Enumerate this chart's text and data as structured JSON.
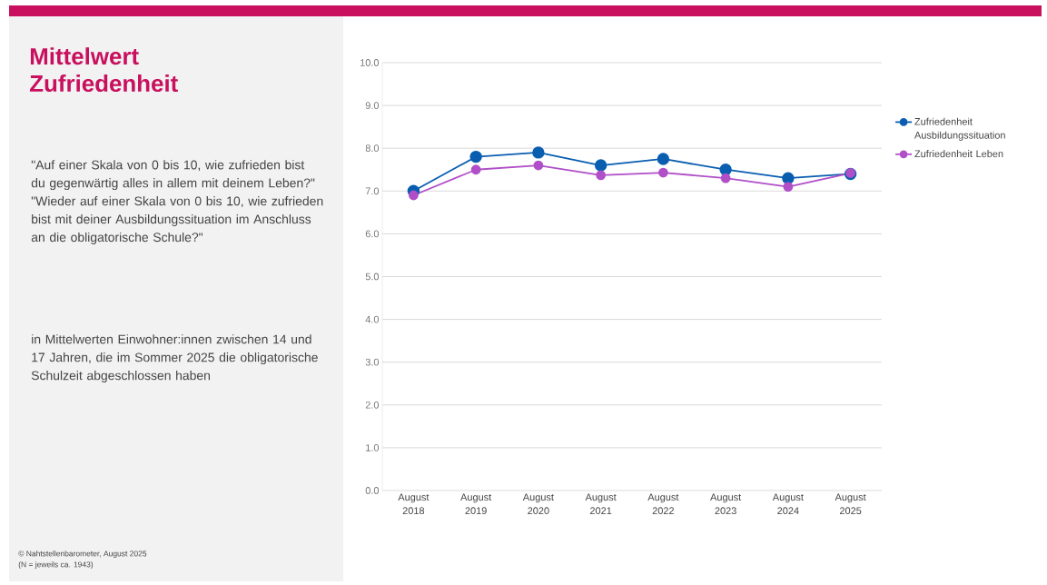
{
  "chart_data": {
    "type": "line",
    "title": "Mittelwert Zufriedenheit",
    "subtitle": "\"Auf einer Skala von 0 bis 10, wie zufrieden bist du gegenwärtig alles in allem mit deinem Leben?\" \"Wieder auf einer Skala von 0 bis 10, wie zufrieden bist mit deiner Ausbildungssituation im Anschluss an die obligatorische Schule?\"",
    "annotations": [
      "in Mittelwerten Einwohner:innen zwischen 14 und 17 Jahren, die im Sommer 2025 die obligatorische Schulzeit abgeschlossen haben",
      "© Nahtstellenbarometer, August 2025",
      "(N = jeweils ca. 1943)"
    ],
    "categories": [
      "August 2018",
      "August 2019",
      "August 2020",
      "August 2021",
      "August 2022",
      "August 2023",
      "August 2024",
      "August 2025"
    ],
    "series": [
      {
        "name": "Zufriedenheit Ausbildungssituation",
        "color": "#0a5eb0",
        "values": [
          7.0,
          7.8,
          7.9,
          7.6,
          7.75,
          7.5,
          7.3,
          7.4
        ]
      },
      {
        "name": "Zufriedenheit Leben",
        "color": "#b04fc8",
        "values": [
          6.9,
          7.5,
          7.6,
          7.37,
          7.43,
          7.3,
          7.1,
          7.42
        ]
      }
    ],
    "ylim": [
      0,
      10
    ],
    "yticks": [
      {
        "value": 0,
        "label": "0.0"
      },
      {
        "value": 1,
        "label": "1.0"
      },
      {
        "value": 2,
        "label": "2.0"
      },
      {
        "value": 3,
        "label": "3.0"
      },
      {
        "value": 4,
        "label": "4.0"
      },
      {
        "value": 5,
        "label": "5.0"
      },
      {
        "value": 6,
        "label": "6.0"
      },
      {
        "value": 7,
        "label": "7.0"
      },
      {
        "value": 8,
        "label": "8.0"
      },
      {
        "value": 9,
        "label": "9.0"
      },
      {
        "value": 10,
        "label": "10.0"
      }
    ],
    "grid": "y",
    "legend": "right",
    "marker": "circle",
    "line_style": "solid"
  }
}
